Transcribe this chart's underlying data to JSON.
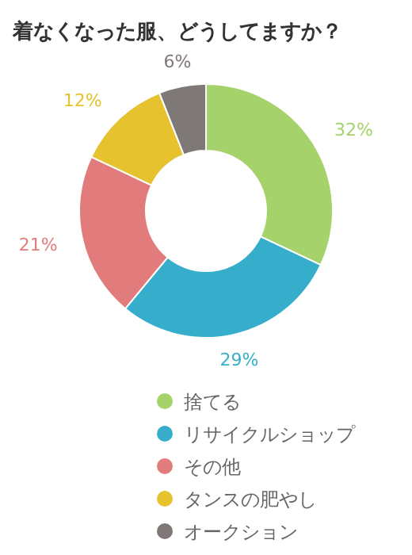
{
  "chart_data": {
    "type": "donut",
    "title": "着なくなった服、どうしてますか？",
    "categories": [
      "捨てる",
      "リサイクルショップ",
      "その他",
      "タンスの肥やし",
      "オークション"
    ],
    "values": [
      32,
      29,
      21,
      12,
      6
    ],
    "value_labels": [
      "32%",
      "29%",
      "21%",
      "12%",
      "6%"
    ],
    "colors": [
      "#a5d26a",
      "#36aecb",
      "#e27c7c",
      "#e6c22e",
      "#7e7876"
    ],
    "legend": "bottom"
  }
}
